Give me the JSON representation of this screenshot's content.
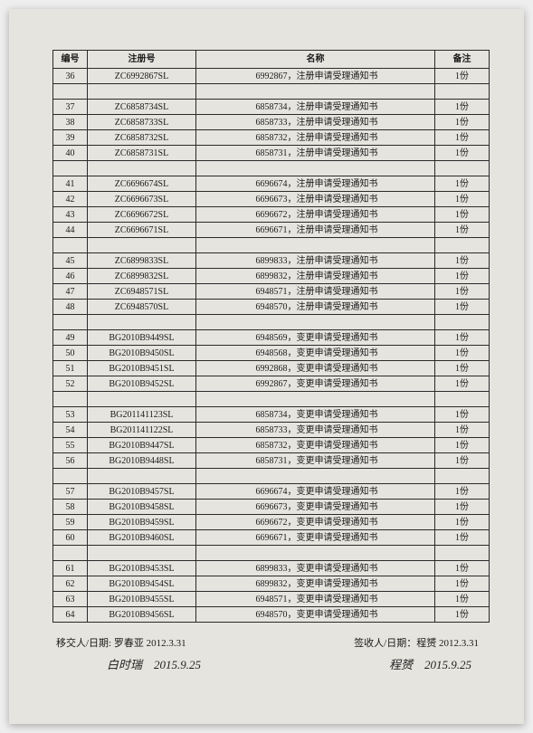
{
  "table": {
    "headers": {
      "num": "编号",
      "reg": "注册号",
      "name": "名称",
      "remark": "备注"
    },
    "groups": [
      [
        {
          "num": "36",
          "reg": "ZC6992867SL",
          "name": "6992867，注册申请受理通知书",
          "remark": "1份"
        }
      ],
      [
        {
          "num": "37",
          "reg": "ZC6858734SL",
          "name": "6858734，注册申请受理通知书",
          "remark": "1份"
        },
        {
          "num": "38",
          "reg": "ZC6858733SL",
          "name": "6858733，注册申请受理通知书",
          "remark": "1份"
        },
        {
          "num": "39",
          "reg": "ZC6858732SL",
          "name": "6858732，注册申请受理通知书",
          "remark": "1份"
        },
        {
          "num": "40",
          "reg": "ZC6858731SL",
          "name": "6858731，注册申请受理通知书",
          "remark": "1份"
        }
      ],
      [
        {
          "num": "41",
          "reg": "ZC6696674SL",
          "name": "6696674，注册申请受理通知书",
          "remark": "1份"
        },
        {
          "num": "42",
          "reg": "ZC6696673SL",
          "name": "6696673，注册申请受理通知书",
          "remark": "1份"
        },
        {
          "num": "43",
          "reg": "ZC6696672SL",
          "name": "6696672，注册申请受理通知书",
          "remark": "1份"
        },
        {
          "num": "44",
          "reg": "ZC6696671SL",
          "name": "6696671，注册申请受理通知书",
          "remark": "1份"
        }
      ],
      [
        {
          "num": "45",
          "reg": "ZC6899833SL",
          "name": "6899833，注册申请受理通知书",
          "remark": "1份"
        },
        {
          "num": "46",
          "reg": "ZC6899832SL",
          "name": "6899832，注册申请受理通知书",
          "remark": "1份"
        },
        {
          "num": "47",
          "reg": "ZC6948571SL",
          "name": "6948571，注册申请受理通知书",
          "remark": "1份"
        },
        {
          "num": "48",
          "reg": "ZC6948570SL",
          "name": "6948570，注册申请受理通知书",
          "remark": "1份"
        }
      ],
      [
        {
          "num": "49",
          "reg": "BG2010B9449SL",
          "name": "6948569，变更申请受理通知书",
          "remark": "1份"
        },
        {
          "num": "50",
          "reg": "BG2010B9450SL",
          "name": "6948568，变更申请受理通知书",
          "remark": "1份"
        },
        {
          "num": "51",
          "reg": "BG2010B9451SL",
          "name": "6992868，变更申请受理通知书",
          "remark": "1份"
        },
        {
          "num": "52",
          "reg": "BG2010B9452SL",
          "name": "6992867，变更申请受理通知书",
          "remark": "1份"
        }
      ],
      [
        {
          "num": "53",
          "reg": "BG201141123SL",
          "name": "6858734，变更申请受理通知书",
          "remark": "1份"
        },
        {
          "num": "54",
          "reg": "BG201141122SL",
          "name": "6858733，变更申请受理通知书",
          "remark": "1份"
        },
        {
          "num": "55",
          "reg": "BG2010B9447SL",
          "name": "6858732，变更申请受理通知书",
          "remark": "1份"
        },
        {
          "num": "56",
          "reg": "BG2010B9448SL",
          "name": "6858731，变更申请受理通知书",
          "remark": "1份"
        }
      ],
      [
        {
          "num": "57",
          "reg": "BG2010B9457SL",
          "name": "6696674，变更申请受理通知书",
          "remark": "1份"
        },
        {
          "num": "58",
          "reg": "BG2010B9458SL",
          "name": "6696673，变更申请受理通知书",
          "remark": "1份"
        },
        {
          "num": "59",
          "reg": "BG2010B9459SL",
          "name": "6696672，变更申请受理通知书",
          "remark": "1份"
        },
        {
          "num": "60",
          "reg": "BG2010B9460SL",
          "name": "6696671，变更申请受理通知书",
          "remark": "1份"
        }
      ],
      [
        {
          "num": "61",
          "reg": "BG2010B9453SL",
          "name": "6899833，变更申请受理通知书",
          "remark": "1份"
        },
        {
          "num": "62",
          "reg": "BG2010B9454SL",
          "name": "6899832，变更申请受理通知书",
          "remark": "1份"
        },
        {
          "num": "63",
          "reg": "BG2010B9455SL",
          "name": "6948571，变更申请受理通知书",
          "remark": "1份"
        },
        {
          "num": "64",
          "reg": "BG2010B9456SL",
          "name": "6948570，变更申请受理通知书",
          "remark": "1份"
        }
      ]
    ]
  },
  "footer": {
    "left": "移交人/日期: 罗春亚  2012.3.31",
    "right": "签收人/日期：程赟  2012.3.31",
    "sig_left": "白时瑞　2015.9.25",
    "sig_right": "程赟　2015.9.25"
  },
  "style": {
    "page_bg": "#e6e4df",
    "border_color": "#2a2a2a",
    "text_color": "#1a1a1a",
    "font_size_table": 10,
    "font_size_footer": 11
  }
}
